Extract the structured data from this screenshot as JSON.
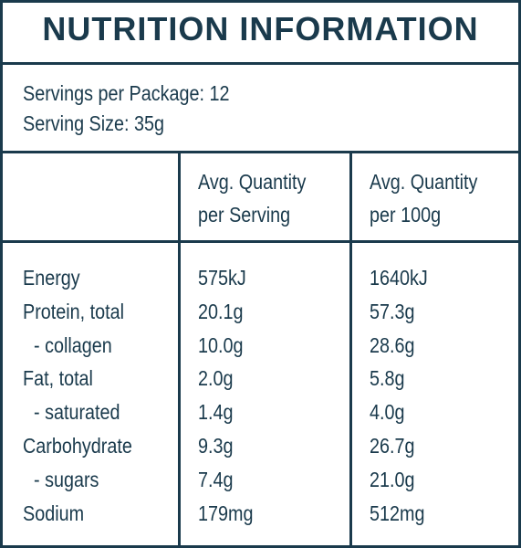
{
  "title": "NUTRITION INFORMATION",
  "servings": [
    "Servings per Package: 12",
    "Serving Size: 35g"
  ],
  "header": {
    "per_serving": [
      "Avg. Quantity",
      "per Serving"
    ],
    "per_100g": [
      "Avg. Quantity",
      "per 100g"
    ]
  },
  "rows": [
    [
      "Energy",
      "575kJ",
      "1640kJ"
    ],
    [
      "Protein, total",
      "20.1g",
      "57.3g"
    ],
    [
      "- collagen",
      "10.0g",
      "28.6g"
    ],
    [
      "Fat, total",
      "2.0g",
      "5.8g"
    ],
    [
      "- saturated",
      "1.4g",
      "4.0g"
    ],
    [
      "Carbohydrate",
      "9.3g",
      "26.7g"
    ],
    [
      "- sugars",
      "7.4g",
      "21.0g"
    ],
    [
      "Sodium",
      "179mg",
      "512mg"
    ]
  ]
}
